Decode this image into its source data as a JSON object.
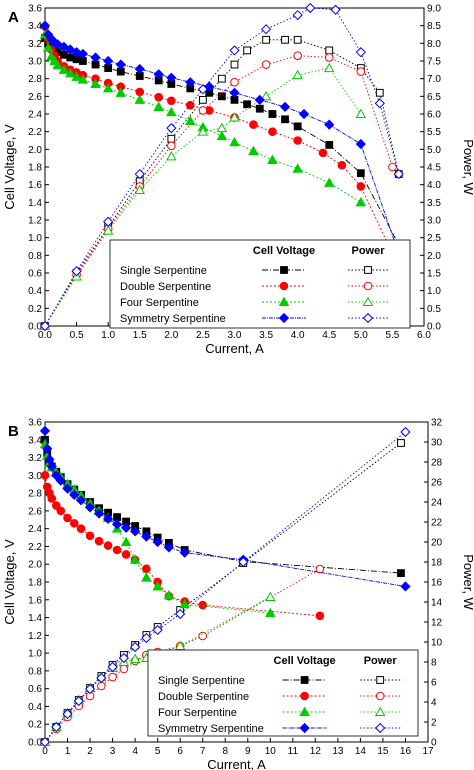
{
  "panels": [
    {
      "label": "A",
      "chart_data": {
        "type": "line",
        "xlabel": "Current, A",
        "ylabel": "Cell Voltage, V",
        "y2label": "Power, W",
        "xlim": [
          0,
          6
        ],
        "ylim": [
          0,
          3.6
        ],
        "y2lim": [
          0,
          9
        ],
        "xticks": [
          0,
          0.5,
          1,
          1.5,
          2,
          2.5,
          3,
          3.5,
          4,
          4.5,
          5,
          5.5,
          6
        ],
        "yticks": [
          0,
          0.2,
          0.4,
          0.6,
          0.8,
          1,
          1.2,
          1.4,
          1.6,
          1.8,
          2,
          2.2,
          2.4,
          2.6,
          2.8,
          3,
          3.2,
          3.4,
          3.6
        ],
        "y2ticks": [
          0,
          0.5,
          1,
          1.5,
          2,
          2.5,
          3,
          3.5,
          4,
          4.5,
          5,
          5.5,
          6,
          6.5,
          7,
          7.5,
          8,
          8.5,
          9
        ],
        "xtick_labels": [
          "0.0",
          "0.5",
          "1.0",
          "1.5",
          "2.0",
          "2.5",
          "3.0",
          "3.5",
          "4.0",
          "4.5",
          "5.0",
          "5.5",
          "6.0"
        ],
        "ytick_labels": [
          "0.0",
          "0.2",
          "0.4",
          "0.6",
          "0.8",
          "1.0",
          "1.2",
          "1.4",
          "1.6",
          "1.8",
          "2.0",
          "2.2",
          "2.4",
          "2.6",
          "2.8",
          "3.0",
          "3.2",
          "3.4",
          "3.6"
        ],
        "y2tick_labels": [
          "0.0",
          "0.5",
          "1.0",
          "1.5",
          "2.0",
          "2.5",
          "3.0",
          "3.5",
          "4.0",
          "4.5",
          "5.0",
          "5.5",
          "6.0",
          "6.5",
          "7.0",
          "7.5",
          "8.0",
          "8.5",
          "9.0"
        ],
        "legend_headers": [
          "Cell Voltage",
          "Power"
        ],
        "legend_position": "bottom-right",
        "series": [
          {
            "name": "Single Serpentine",
            "color": "#000000",
            "marker": "square",
            "voltage": {
              "x": [
                0,
                0.05,
                0.1,
                0.15,
                0.2,
                0.3,
                0.4,
                0.5,
                0.6,
                0.8,
                1.0,
                1.2,
                1.5,
                1.8,
                2.0,
                2.3,
                2.6,
                2.8,
                3.0,
                3.2,
                3.4,
                3.6,
                3.8,
                4.0,
                4.5,
                5.0,
                5.6
              ],
              "y": [
                3.26,
                3.2,
                3.15,
                3.12,
                3.1,
                3.07,
                3.04,
                3.02,
                3.0,
                2.96,
                2.92,
                2.88,
                2.83,
                2.78,
                2.74,
                2.69,
                2.64,
                2.6,
                2.56,
                2.51,
                2.46,
                2.4,
                2.34,
                2.26,
                2.05,
                1.73,
                0.92
              ]
            },
            "power": {
              "x": [
                0,
                0.5,
                1.0,
                1.5,
                2.0,
                2.5,
                2.8,
                3.0,
                3.2,
                3.5,
                3.8,
                4.0,
                4.5,
                5.0,
                5.3,
                5.6
              ],
              "y": [
                0,
                1.5,
                2.8,
                4.1,
                5.3,
                6.4,
                7.0,
                7.4,
                7.8,
                8.1,
                8.1,
                8.1,
                7.8,
                7.3,
                6.6,
                4.3
              ]
            }
          },
          {
            "name": "Double Serpentine",
            "color": "#ff0000",
            "marker": "circle",
            "voltage": {
              "x": [
                0,
                0.05,
                0.1,
                0.15,
                0.2,
                0.3,
                0.4,
                0.5,
                0.6,
                0.8,
                1.0,
                1.2,
                1.5,
                1.8,
                2.0,
                2.3,
                2.6,
                3.0,
                3.3,
                3.6,
                4.0,
                4.4,
                4.7,
                5.0,
                5.5
              ],
              "y": [
                3.39,
                3.25,
                3.13,
                3.06,
                3.0,
                2.94,
                2.9,
                2.87,
                2.84,
                2.8,
                2.75,
                2.71,
                2.65,
                2.59,
                2.55,
                2.5,
                2.44,
                2.36,
                2.28,
                2.2,
                2.1,
                1.96,
                1.82,
                1.58,
                0.82
              ]
            },
            "power": {
              "x": [
                0,
                0.5,
                1.0,
                1.5,
                2.0,
                2.5,
                3.0,
                3.5,
                4.0,
                4.5,
                5.0,
                5.5
              ],
              "y": [
                0,
                1.45,
                2.75,
                3.95,
                5.1,
                6.1,
                6.9,
                7.4,
                7.65,
                7.6,
                7.2,
                4.5
              ]
            }
          },
          {
            "name": "Four Serpentine",
            "color": "#00cc00",
            "marker": "triangle",
            "voltage": {
              "x": [
                0,
                0.05,
                0.1,
                0.15,
                0.2,
                0.3,
                0.4,
                0.5,
                0.6,
                0.8,
                1.0,
                1.2,
                1.5,
                1.8,
                2.0,
                2.3,
                2.5,
                2.8,
                3.0,
                3.3,
                3.6,
                4.0,
                4.5,
                5.0
              ],
              "y": [
                3.3,
                3.15,
                3.05,
                3.0,
                2.95,
                2.9,
                2.86,
                2.82,
                2.79,
                2.74,
                2.69,
                2.64,
                2.56,
                2.48,
                2.42,
                2.32,
                2.25,
                2.15,
                2.08,
                1.98,
                1.88,
                1.78,
                1.62,
                1.4
              ]
            },
            "power": {
              "x": [
                0,
                0.5,
                1.0,
                1.5,
                2.0,
                2.5,
                2.8,
                3.0,
                3.5,
                4.0,
                4.5,
                5.0
              ],
              "y": [
                0,
                1.4,
                2.7,
                3.85,
                4.8,
                5.5,
                5.6,
                5.9,
                6.5,
                7.1,
                7.3,
                6.0
              ]
            }
          },
          {
            "name": "Symmetry Serpentine",
            "color": "#0000ff",
            "marker": "diamond",
            "voltage": {
              "x": [
                0,
                0.05,
                0.1,
                0.15,
                0.2,
                0.3,
                0.4,
                0.5,
                0.6,
                0.8,
                1.0,
                1.2,
                1.5,
                1.8,
                2.0,
                2.3,
                2.6,
                3.0,
                3.4,
                3.8,
                4.1,
                4.5,
                5.0,
                5.6
              ],
              "y": [
                3.4,
                3.3,
                3.25,
                3.21,
                3.19,
                3.16,
                3.13,
                3.1,
                3.08,
                3.04,
                3.0,
                2.96,
                2.91,
                2.85,
                2.81,
                2.76,
                2.71,
                2.64,
                2.56,
                2.48,
                2.4,
                2.28,
                2.06,
                0.82
              ]
            },
            "power": {
              "x": [
                0,
                0.5,
                1.0,
                1.5,
                2.0,
                2.5,
                3.0,
                3.5,
                4.0,
                4.2,
                4.6,
                5.0,
                5.3,
                5.6
              ],
              "y": [
                0,
                1.55,
                2.95,
                4.3,
                5.6,
                6.7,
                7.8,
                8.4,
                8.8,
                9.0,
                8.95,
                7.75,
                6.3,
                4.3
              ]
            }
          }
        ]
      }
    },
    {
      "label": "B",
      "chart_data": {
        "type": "line",
        "xlabel": "Current, A",
        "ylabel": "Cell Voltage, V",
        "y2label": "Power, W",
        "xlim": [
          0,
          17
        ],
        "ylim": [
          0,
          3.6
        ],
        "y2lim": [
          0,
          32
        ],
        "xticks": [
          0,
          1,
          2,
          3,
          4,
          5,
          6,
          7,
          8,
          9,
          10,
          11,
          12,
          13,
          14,
          15,
          16,
          17
        ],
        "yticks": [
          0,
          0.2,
          0.4,
          0.6,
          0.8,
          1,
          1.2,
          1.4,
          1.6,
          1.8,
          2,
          2.2,
          2.4,
          2.6,
          2.8,
          3,
          3.2,
          3.4,
          3.6
        ],
        "y2ticks": [
          0,
          2,
          4,
          6,
          8,
          10,
          12,
          14,
          16,
          18,
          20,
          22,
          24,
          26,
          28,
          30,
          32
        ],
        "xtick_labels": [
          "0",
          "1",
          "2",
          "3",
          "4",
          "5",
          "6",
          "7",
          "8",
          "9",
          "10",
          "11",
          "12",
          "13",
          "14",
          "15",
          "16",
          "17"
        ],
        "ytick_labels": [
          "0.0",
          "0.2",
          "0.4",
          "0.6",
          "0.8",
          "1.0",
          "1.2",
          "1.4",
          "1.6",
          "1.8",
          "2.0",
          "2.2",
          "2.4",
          "2.6",
          "2.8",
          "3.0",
          "3.2",
          "3.4",
          "3.6"
        ],
        "y2tick_labels": [
          "0",
          "2",
          "4",
          "6",
          "8",
          "10",
          "12",
          "14",
          "16",
          "18",
          "20",
          "22",
          "24",
          "26",
          "28",
          "30",
          "32"
        ],
        "legend_headers": [
          "Cell Voltage",
          "Power"
        ],
        "legend_position": "bottom-right",
        "series": [
          {
            "name": "Single Serpentine",
            "color": "#000000",
            "marker": "square",
            "voltage": {
              "x": [
                0,
                0.1,
                0.2,
                0.3,
                0.5,
                0.7,
                1.0,
                1.3,
                1.6,
                2.0,
                2.4,
                2.8,
                3.2,
                3.6,
                4.0,
                4.5,
                5.0,
                5.5,
                6.2,
                8.8,
                15.8
              ],
              "y": [
                3.4,
                3.25,
                3.15,
                3.1,
                3.04,
                2.98,
                2.9,
                2.84,
                2.78,
                2.7,
                2.63,
                2.58,
                2.53,
                2.48,
                2.43,
                2.37,
                2.3,
                2.24,
                2.16,
                2.03,
                1.9
              ]
            },
            "power": {
              "x": [
                0,
                0.5,
                1,
                1.5,
                2,
                2.5,
                3,
                3.5,
                4,
                4.5,
                5,
                6,
                8.8,
                15.8
              ],
              "y": [
                0,
                1.5,
                2.9,
                4.2,
                5.4,
                6.6,
                7.7,
                8.7,
                9.7,
                10.7,
                11.5,
                13.2,
                17.9,
                29.9
              ]
            }
          },
          {
            "name": "Double Serpentine",
            "color": "#ff0000",
            "marker": "circle",
            "voltage": {
              "x": [
                0,
                0.1,
                0.2,
                0.3,
                0.5,
                0.7,
                1.0,
                1.3,
                1.6,
                2.0,
                2.4,
                2.8,
                3.2,
                3.6,
                4.0,
                4.5,
                5.0,
                5.5,
                6.2,
                7.0,
                12.2
              ],
              "y": [
                3.0,
                2.87,
                2.8,
                2.74,
                2.66,
                2.6,
                2.52,
                2.46,
                2.4,
                2.32,
                2.26,
                2.21,
                2.16,
                2.11,
                2.05,
                1.95,
                1.8,
                1.64,
                1.58,
                1.54,
                1.42
              ]
            },
            "power": {
              "x": [
                0,
                0.5,
                1,
                1.5,
                2,
                2.5,
                3,
                3.5,
                4,
                4.5,
                5,
                6,
                7,
                12.2
              ],
              "y": [
                0,
                1.3,
                2.5,
                3.6,
                4.6,
                5.6,
                6.5,
                7.3,
                8.1,
                8.7,
                9.0,
                9.6,
                10.6,
                17.3
              ]
            }
          },
          {
            "name": "Four Serpentine",
            "color": "#00cc00",
            "marker": "triangle",
            "voltage": {
              "x": [
                0,
                0.1,
                0.2,
                0.3,
                0.5,
                0.7,
                1.0,
                1.3,
                1.6,
                2.0,
                2.4,
                2.8,
                3.2,
                3.6,
                4.0,
                4.5,
                5.0,
                5.5,
                6.2,
                10.0
              ],
              "y": [
                3.35,
                3.22,
                3.14,
                3.09,
                3.03,
                2.98,
                2.9,
                2.84,
                2.77,
                2.68,
                2.6,
                2.52,
                2.4,
                2.25,
                2.05,
                1.85,
                1.75,
                1.65,
                1.55,
                1.45
              ]
            },
            "power": {
              "x": [
                0,
                0.5,
                1,
                1.5,
                2,
                2.5,
                3,
                3.5,
                4,
                4.5,
                5,
                6,
                10
              ],
              "y": [
                0,
                1.5,
                2.9,
                4.2,
                5.4,
                6.5,
                7.4,
                8.0,
                8.3,
                8.4,
                8.8,
                9.6,
                14.5
              ]
            }
          },
          {
            "name": "Symmetry Serpentine",
            "color": "#0000ff",
            "marker": "diamond",
            "voltage": {
              "x": [
                0,
                0.1,
                0.2,
                0.3,
                0.5,
                0.7,
                1.0,
                1.3,
                1.6,
                2.0,
                2.4,
                2.8,
                3.2,
                3.6,
                4.0,
                4.5,
                5.0,
                5.5,
                6.2,
                8.8,
                16.0
              ],
              "y": [
                3.5,
                3.3,
                3.18,
                3.1,
                3.0,
                2.94,
                2.85,
                2.78,
                2.72,
                2.64,
                2.57,
                2.51,
                2.45,
                2.41,
                2.37,
                2.31,
                2.25,
                2.19,
                2.13,
                2.05,
                1.75
              ]
            },
            "power": {
              "x": [
                0,
                0.5,
                1,
                1.5,
                2,
                2.5,
                3,
                3.5,
                4,
                4.5,
                5,
                6,
                8.8,
                16.0
              ],
              "y": [
                0,
                1.5,
                2.8,
                4.1,
                5.3,
                6.4,
                7.5,
                8.4,
                9.5,
                10.4,
                11.2,
                12.8,
                18.0,
                31.0
              ]
            }
          }
        ]
      }
    }
  ]
}
